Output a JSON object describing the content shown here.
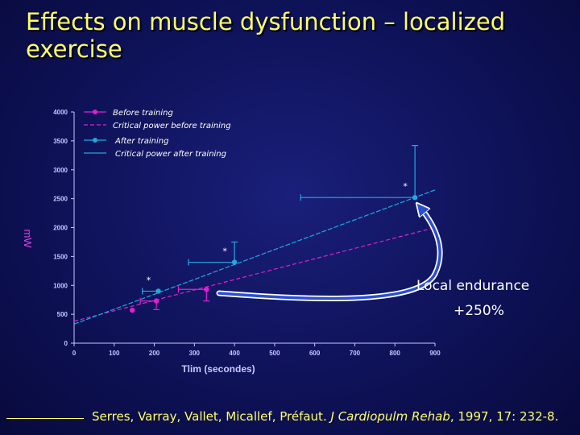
{
  "title": "Effects on muscle dysfunction – localized exercise",
  "callout": {
    "line1": "Local endurance",
    "line2": "+250%"
  },
  "citation": {
    "authors": "Serres, Varray, Vallet, Micallef, Préfaut.",
    "journal": "J Cardiopulm Rehab",
    "details": ", 1997, 17: 232-8."
  },
  "colors": {
    "before": "#e020d0",
    "after": "#20a8e0",
    "title": "#ffff66",
    "arrow": "#2a4fd0"
  },
  "chart_data": {
    "type": "scatter",
    "xlabel": "Tlim (secondes)",
    "ylabel": "mW",
    "xlim": [
      0,
      900
    ],
    "ylim": [
      0,
      4000
    ],
    "x_ticks": [
      0,
      100,
      200,
      300,
      400,
      500,
      600,
      700,
      800,
      900
    ],
    "y_ticks": [
      0,
      500,
      1000,
      1500,
      2000,
      2500,
      3000,
      3500,
      4000
    ],
    "legend_placement": "top-left",
    "legend": [
      "Before training",
      "Critical power before training",
      "After training",
      "Critical power after training"
    ],
    "series": [
      {
        "name": "Before training",
        "color": "#e020d0",
        "points": [
          {
            "x": 145,
            "y": 570
          },
          {
            "x": 205,
            "y": 730,
            "xerr": 40,
            "yerr": 150
          },
          {
            "x": 330,
            "y": 930,
            "xerr": 70,
            "yerr": 200
          }
        ],
        "fit": {
          "x0": 0,
          "y0": 380,
          "x1": 900,
          "y1": 2000
        }
      },
      {
        "name": "After training",
        "color": "#20a8e0",
        "points": [
          {
            "x": 210,
            "y": 900,
            "xerr": 40,
            "yerr": 0,
            "star": true
          },
          {
            "x": 400,
            "y": 1400,
            "xerr": 115,
            "yerr": 350,
            "star": true
          },
          {
            "x": 850,
            "y": 2520,
            "xerr": 285,
            "yerr": 900,
            "star": true
          }
        ],
        "fit": {
          "x0": 0,
          "y0": 330,
          "x1": 900,
          "y1": 2650
        }
      }
    ],
    "star_label": "*"
  }
}
